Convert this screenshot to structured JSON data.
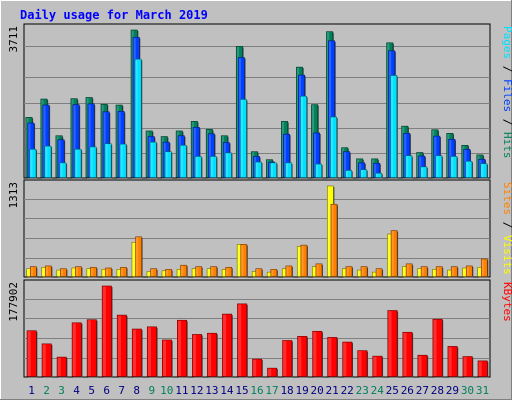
{
  "chart_data": {
    "type": "bar",
    "title": "Daily usage for March 2019",
    "colors": {
      "hits": "#00805c",
      "files": "#0040ff",
      "pages": "#00e0ff",
      "visits": "#ffff00",
      "sites": "#ff8000",
      "kbytes": "#ff0000",
      "weekend_label": "#00805c",
      "weekday_label": "#000080",
      "title": "#0000ff",
      "background": "#c0c0c0"
    },
    "x": [
      "1",
      "2",
      "3",
      "4",
      "5",
      "6",
      "7",
      "8",
      "9",
      "10",
      "11",
      "12",
      "13",
      "14",
      "15",
      "16",
      "17",
      "18",
      "19",
      "20",
      "21",
      "22",
      "23",
      "24",
      "25",
      "26",
      "27",
      "28",
      "29",
      "30",
      "31"
    ],
    "weekend_days": [
      "2",
      "3",
      "9",
      "10",
      "16",
      "17",
      "23",
      "24",
      "30",
      "31"
    ],
    "panels": [
      {
        "id": "requests",
        "max_label": "3711",
        "legend": [
          {
            "key": "pages",
            "text": "Pages"
          },
          {
            "key": "sep",
            "text": " / "
          },
          {
            "key": "files",
            "text": "Files"
          },
          {
            "key": "sep",
            "text": " / "
          },
          {
            "key": "hits",
            "text": "Hits"
          }
        ],
        "ylim": [
          0,
          3711
        ],
        "series": [
          {
            "name": "Hits",
            "key": "hits",
            "values": [
              1520,
              1980,
              1060,
              1990,
              2020,
              1850,
              1830,
              3711,
              1180,
              1040,
              1180,
              1420,
              1220,
              1060,
              3300,
              660,
              460,
              1420,
              2780,
              1840,
              3670,
              760,
              480,
              480,
              3390,
              1300,
              640,
              1210,
              1120,
              820,
              580
            ]
          },
          {
            "name": "Files",
            "key": "files",
            "values": [
              1380,
              1830,
              960,
              1840,
              1860,
              1660,
              1670,
              3530,
              1040,
              900,
              1060,
              1270,
              1110,
              890,
              3020,
              540,
              400,
              1100,
              2580,
              1130,
              3440,
              660,
              380,
              370,
              3190,
              1120,
              550,
              1050,
              970,
              720,
              470
            ]
          },
          {
            "name": "Pages",
            "key": "pages",
            "values": [
              720,
              800,
              380,
              720,
              780,
              860,
              850,
              2980,
              900,
              660,
              820,
              540,
              540,
              630,
              1970,
              400,
              380,
              380,
              2050,
              350,
              1530,
              190,
              210,
              120,
              2570,
              560,
              280,
              560,
              540,
              420,
              360
            ]
          }
        ]
      },
      {
        "id": "visits",
        "max_label": "1313",
        "legend": [
          {
            "key": "sites",
            "text": "Sites"
          },
          {
            "key": "sep",
            "text": " / "
          },
          {
            "key": "visits",
            "text": "Visits"
          }
        ],
        "ylim": [
          0,
          1313
        ],
        "series": [
          {
            "name": "Visits",
            "key": "visits",
            "values": [
              120,
              140,
              100,
              130,
              120,
              110,
              110,
              500,
              80,
              90,
              110,
              120,
              120,
              110,
              470,
              80,
              70,
              120,
              440,
              150,
              1313,
              120,
              100,
              70,
              620,
              150,
              120,
              110,
              100,
              130,
              140
            ]
          },
          {
            "name": "Sites",
            "key": "sites",
            "values": [
              150,
              160,
              120,
              150,
              140,
              130,
              140,
              580,
              120,
              110,
              170,
              150,
              150,
              140,
              470,
              120,
              110,
              160,
              460,
              190,
              1050,
              150,
              150,
              120,
              670,
              190,
              150,
              150,
              150,
              160,
              260
            ]
          }
        ]
      },
      {
        "id": "kbytes",
        "max_label": "177902",
        "legend": [
          {
            "key": "kbytes",
            "text": "KBytes"
          }
        ],
        "ylim": [
          0,
          177902
        ],
        "series": [
          {
            "name": "KBytes",
            "key": "kbytes",
            "values": [
              90500,
              64800,
              38900,
              106000,
              112000,
              177902,
              121000,
              93800,
              98100,
              72400,
              111000,
              83200,
              85600,
              123000,
              143000,
              35000,
              17300,
              71400,
              79500,
              89400,
              77400,
              68300,
              51600,
              40800,
              130000,
              87500,
              42600,
              113000,
              59800,
              40000,
              31500
            ]
          }
        ]
      }
    ]
  }
}
